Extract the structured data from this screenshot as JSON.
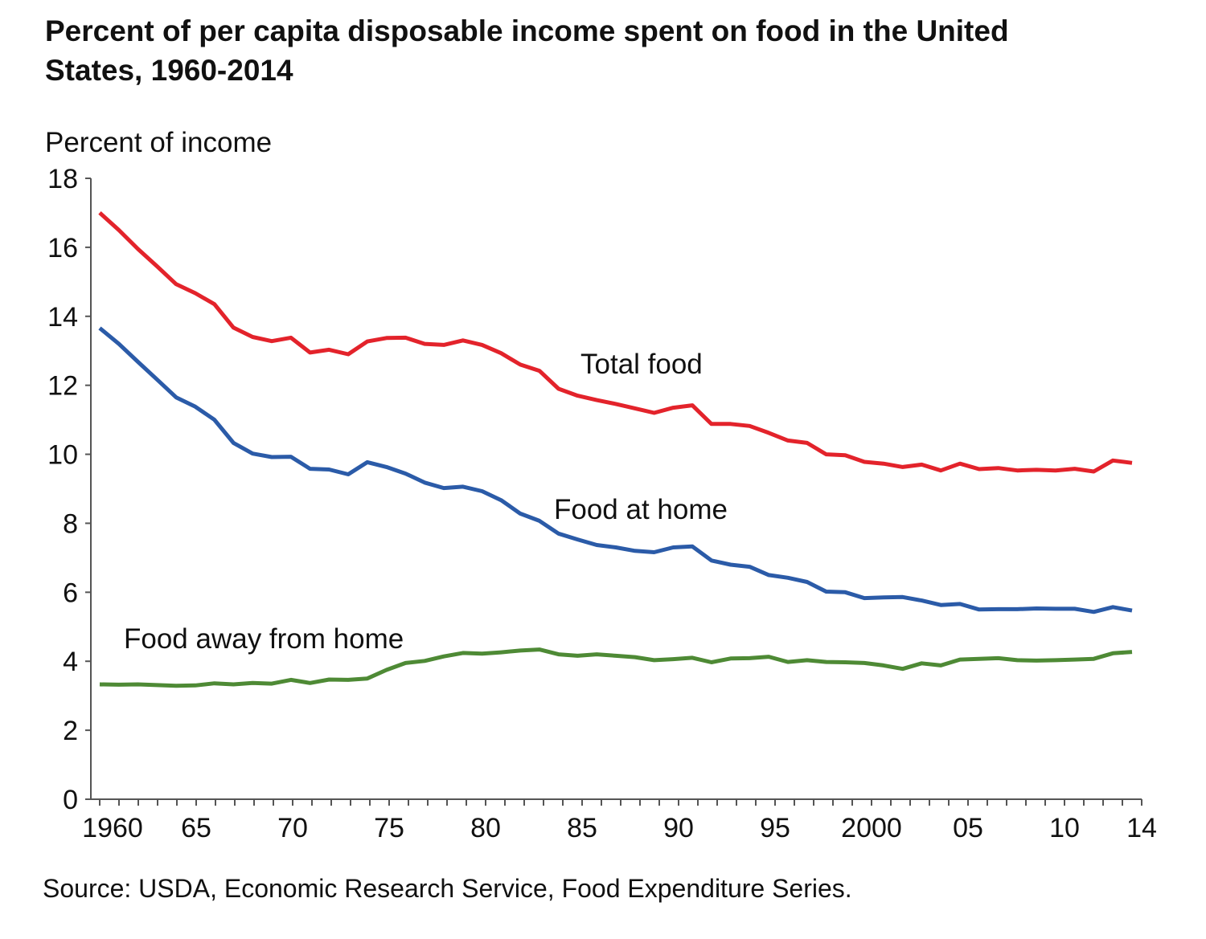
{
  "chart_data": {
    "type": "line",
    "title": "Percent of per capita disposable income spent on food in the United States, 1960-2014",
    "ylabel": "Percent of income",
    "xlabel": "",
    "ylim": [
      0,
      18
    ],
    "xlim": [
      1960,
      2014
    ],
    "yticks": [
      "0",
      "2",
      "4",
      "6",
      "8",
      "10",
      "12",
      "14",
      "16",
      "18"
    ],
    "xticks": [
      {
        "year": 1960,
        "label": "1960"
      },
      {
        "year": 1965,
        "label": "65"
      },
      {
        "year": 1970,
        "label": "70"
      },
      {
        "year": 1975,
        "label": "75"
      },
      {
        "year": 1980,
        "label": "80"
      },
      {
        "year": 1985,
        "label": "85"
      },
      {
        "year": 1990,
        "label": "90"
      },
      {
        "year": 1995,
        "label": "95"
      },
      {
        "year": 2000,
        "label": "2000"
      },
      {
        "year": 2005,
        "label": "05"
      },
      {
        "year": 2010,
        "label": "10"
      },
      {
        "year": 2014,
        "label": "14"
      }
    ],
    "grid": false,
    "legend": "inline labels",
    "x_start": 1960,
    "series": [
      {
        "name": "Total food",
        "color": "#e3232b",
        "values": [
          17.0,
          16.5,
          15.95,
          15.45,
          14.93,
          14.67,
          14.35,
          13.67,
          13.4,
          13.28,
          13.38,
          12.95,
          13.03,
          12.9,
          13.27,
          13.37,
          13.38,
          13.2,
          13.17,
          13.3,
          13.17,
          12.93,
          12.6,
          12.42,
          11.9,
          11.7,
          11.57,
          11.46,
          11.33,
          11.2,
          11.35,
          11.42,
          10.88,
          10.88,
          10.82,
          10.62,
          10.4,
          10.33,
          10.0,
          9.97,
          9.78,
          9.73,
          9.63,
          9.7,
          9.53,
          9.73,
          9.57,
          9.6,
          9.53,
          9.55,
          9.53,
          9.58,
          9.5,
          9.82,
          9.75
        ]
      },
      {
        "name": "Food at home",
        "color": "#2b5ba8",
        "values": [
          13.66,
          13.2,
          12.68,
          12.17,
          11.65,
          11.38,
          11.0,
          10.33,
          10.02,
          9.92,
          9.93,
          9.58,
          9.56,
          9.42,
          9.77,
          9.63,
          9.44,
          9.18,
          9.02,
          9.06,
          8.93,
          8.67,
          8.28,
          8.07,
          7.7,
          7.53,
          7.37,
          7.3,
          7.2,
          7.16,
          7.3,
          7.33,
          6.92,
          6.8,
          6.74,
          6.5,
          6.42,
          6.3,
          6.02,
          6.0,
          5.83,
          5.85,
          5.86,
          5.76,
          5.63,
          5.66,
          5.5,
          5.51,
          5.51,
          5.53,
          5.52,
          5.52,
          5.43,
          5.57,
          5.47
        ]
      },
      {
        "name": "Food away from home",
        "color": "#4e8a35",
        "values": [
          3.33,
          3.32,
          3.33,
          3.31,
          3.29,
          3.3,
          3.36,
          3.33,
          3.37,
          3.35,
          3.46,
          3.37,
          3.47,
          3.46,
          3.5,
          3.75,
          3.95,
          4.01,
          4.14,
          4.24,
          4.22,
          4.26,
          4.31,
          4.34,
          4.2,
          4.16,
          4.2,
          4.16,
          4.12,
          4.03,
          4.06,
          4.1,
          3.97,
          4.08,
          4.09,
          4.13,
          3.98,
          4.03,
          3.98,
          3.97,
          3.95,
          3.88,
          3.78,
          3.94,
          3.88,
          4.05,
          4.07,
          4.09,
          4.03,
          4.02,
          4.03,
          4.05,
          4.07,
          4.23,
          4.27
        ]
      }
    ],
    "source": "Source: USDA, Economic Research Service, Food Expenditure Series."
  }
}
